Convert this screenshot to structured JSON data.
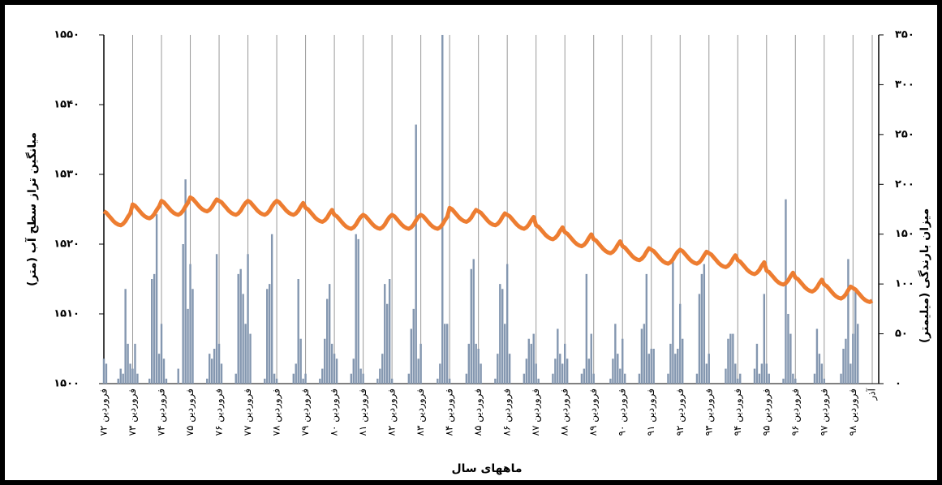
{
  "chart_data": {
    "type": "combo",
    "y_label": "میانگین تراز سطح آب (متر)",
    "y2_label": "میزان بارندگی (میلیمتر)",
    "x_label": "ماههای سال",
    "ylim": [
      1500,
      1550
    ],
    "yticks": [
      {
        "value": 1500,
        "label": "۱۵۰۰"
      },
      {
        "value": 1510,
        "label": "۱۵۱۰"
      },
      {
        "value": 1520,
        "label": "۱۵۲۰"
      },
      {
        "value": 1530,
        "label": "۱۵۳۰"
      },
      {
        "value": 1540,
        "label": "۱۵۴۰"
      },
      {
        "value": 1550,
        "label": "۱۵۵۰"
      }
    ],
    "y2lim": [
      0,
      350
    ],
    "y2ticks": [
      {
        "value": 0,
        "label": "۰"
      },
      {
        "value": 50,
        "label": "۵۰"
      },
      {
        "value": 100,
        "label": "۱۰۰"
      },
      {
        "value": 150,
        "label": "۱۵۰"
      },
      {
        "value": 200,
        "label": "۲۰۰"
      },
      {
        "value": 250,
        "label": "۲۵۰"
      },
      {
        "value": 300,
        "label": "۳۰۰"
      },
      {
        "value": 350,
        "label": "۳۵۰"
      }
    ],
    "categories": [
      "فروردین ۷۲",
      null,
      null,
      null,
      null,
      null,
      null,
      null,
      null,
      null,
      null,
      null,
      "فروردین ۷۳",
      null,
      null,
      null,
      null,
      null,
      null,
      null,
      null,
      null,
      null,
      null,
      "فروردین ۷۴",
      null,
      null,
      null,
      null,
      null,
      null,
      null,
      null,
      null,
      null,
      null,
      "فروردین ۷۵",
      null,
      null,
      null,
      null,
      null,
      null,
      null,
      null,
      null,
      null,
      null,
      "فروردین ۷۶",
      null,
      null,
      null,
      null,
      null,
      null,
      null,
      null,
      null,
      null,
      null,
      "فروردین ۷۷",
      null,
      null,
      null,
      null,
      null,
      null,
      null,
      null,
      null,
      null,
      null,
      "فروردین ۷۸",
      null,
      null,
      null,
      null,
      null,
      null,
      null,
      null,
      null,
      null,
      null,
      "فروردین ۷۹",
      null,
      null,
      null,
      null,
      null,
      null,
      null,
      null,
      null,
      null,
      null,
      "فروردین ۸۰",
      null,
      null,
      null,
      null,
      null,
      null,
      null,
      null,
      null,
      null,
      null,
      "فروردین ۸۱",
      null,
      null,
      null,
      null,
      null,
      null,
      null,
      null,
      null,
      null,
      null,
      "فروردین ۸۲",
      null,
      null,
      null,
      null,
      null,
      null,
      null,
      null,
      null,
      null,
      null,
      "فروردین ۸۳",
      null,
      null,
      null,
      null,
      null,
      null,
      null,
      null,
      null,
      null,
      null,
      "فروردین ۸۴",
      null,
      null,
      null,
      null,
      null,
      null,
      null,
      null,
      null,
      null,
      null,
      "فروردین ۸۵",
      null,
      null,
      null,
      null,
      null,
      null,
      null,
      null,
      null,
      null,
      null,
      "فروردین ۸۶",
      null,
      null,
      null,
      null,
      null,
      null,
      null,
      null,
      null,
      null,
      null,
      "فروردین ۸۷",
      null,
      null,
      null,
      null,
      null,
      null,
      null,
      null,
      null,
      null,
      null,
      "فروردین ۸۸",
      null,
      null,
      null,
      null,
      null,
      null,
      null,
      null,
      null,
      null,
      null,
      "فروردین ۸۹",
      null,
      null,
      null,
      null,
      null,
      null,
      null,
      null,
      null,
      null,
      null,
      "فروردین ۹۰",
      null,
      null,
      null,
      null,
      null,
      null,
      null,
      null,
      null,
      null,
      null,
      "فروردین ۹۱",
      null,
      null,
      null,
      null,
      null,
      null,
      null,
      null,
      null,
      null,
      null,
      "فروردین ۹۲",
      null,
      null,
      null,
      null,
      null,
      null,
      null,
      null,
      null,
      null,
      null,
      "فروردین ۹۳",
      null,
      null,
      null,
      null,
      null,
      null,
      null,
      null,
      null,
      null,
      null,
      "فروردین ۹۴",
      null,
      null,
      null,
      null,
      null,
      null,
      null,
      null,
      null,
      null,
      null,
      "فروردین ۹۵",
      null,
      null,
      null,
      null,
      null,
      null,
      null,
      null,
      null,
      null,
      null,
      "فروردین ۹۶",
      null,
      null,
      null,
      null,
      null,
      null,
      null,
      null,
      null,
      null,
      null,
      "فروردین ۹۷",
      null,
      null,
      null,
      null,
      null,
      null,
      null,
      null,
      null,
      null,
      null,
      "فروردین ۹۸",
      null,
      null,
      null,
      null,
      null,
      null,
      null,
      "آذر"
    ],
    "series": [
      {
        "type": "bar",
        "axis": "y2",
        "color": "#8497b0",
        "values": [
          25,
          20,
          0,
          0,
          0,
          0,
          5,
          15,
          10,
          95,
          40,
          20,
          15,
          40,
          10,
          0,
          0,
          0,
          0,
          5,
          105,
          110,
          170,
          30,
          60,
          25,
          5,
          0,
          0,
          0,
          0,
          15,
          0,
          140,
          205,
          75,
          120,
          95,
          0,
          0,
          0,
          0,
          0,
          5,
          30,
          25,
          35,
          130,
          40,
          20,
          0,
          0,
          0,
          0,
          0,
          10,
          110,
          115,
          90,
          60,
          130,
          50,
          0,
          0,
          0,
          0,
          0,
          5,
          95,
          100,
          150,
          10,
          5,
          0,
          0,
          0,
          0,
          0,
          0,
          10,
          20,
          105,
          45,
          5,
          10,
          0,
          0,
          0,
          0,
          0,
          5,
          15,
          45,
          85,
          100,
          40,
          30,
          25,
          0,
          0,
          0,
          0,
          0,
          10,
          25,
          150,
          145,
          15,
          10,
          0,
          0,
          0,
          0,
          0,
          5,
          15,
          30,
          100,
          80,
          105,
          5,
          0,
          0,
          0,
          0,
          0,
          0,
          10,
          55,
          75,
          260,
          25,
          40,
          0,
          0,
          0,
          0,
          0,
          0,
          5,
          20,
          350,
          60,
          60,
          5,
          0,
          0,
          0,
          0,
          0,
          0,
          10,
          40,
          115,
          125,
          40,
          35,
          20,
          0,
          0,
          0,
          0,
          0,
          5,
          30,
          100,
          95,
          60,
          120,
          30,
          0,
          0,
          0,
          0,
          0,
          10,
          25,
          45,
          40,
          50,
          20,
          5,
          0,
          0,
          0,
          0,
          0,
          10,
          25,
          55,
          30,
          20,
          40,
          25,
          0,
          0,
          0,
          0,
          0,
          10,
          15,
          110,
          25,
          50,
          10,
          0,
          0,
          0,
          0,
          0,
          0,
          5,
          25,
          60,
          30,
          15,
          45,
          10,
          0,
          0,
          0,
          0,
          0,
          10,
          55,
          60,
          110,
          30,
          35,
          35,
          0,
          0,
          0,
          0,
          0,
          10,
          40,
          125,
          30,
          35,
          80,
          45,
          0,
          0,
          0,
          0,
          0,
          10,
          90,
          110,
          120,
          20,
          30,
          0,
          0,
          0,
          0,
          0,
          0,
          15,
          45,
          50,
          50,
          20,
          5,
          10,
          0,
          0,
          0,
          0,
          0,
          15,
          40,
          10,
          20,
          90,
          20,
          10,
          0,
          0,
          0,
          0,
          0,
          5,
          185,
          70,
          50,
          10,
          5,
          0,
          0,
          0,
          0,
          0,
          0,
          0,
          10,
          55,
          30,
          20,
          5,
          0,
          0,
          0,
          0,
          0,
          0,
          10,
          35,
          45,
          125,
          20,
          50,
          95,
          60,
          0,
          0,
          0,
          0,
          0,
          0
        ]
      },
      {
        "type": "line",
        "color": "#ed7d31",
        "values": [
          1524.7,
          1524.5,
          1524.1,
          1523.7,
          1523.3,
          1523.0,
          1522.8,
          1522.7,
          1522.9,
          1523.3,
          1523.9,
          1524.4,
          1525.7,
          1525.5,
          1525.1,
          1524.7,
          1524.3,
          1524.0,
          1523.8,
          1523.7,
          1523.9,
          1524.3,
          1524.9,
          1525.4,
          1526.2,
          1526.0,
          1525.6,
          1525.2,
          1524.8,
          1524.5,
          1524.3,
          1524.2,
          1524.4,
          1524.8,
          1525.4,
          1525.9,
          1526.7,
          1526.5,
          1526.1,
          1525.7,
          1525.3,
          1525.0,
          1524.8,
          1524.7,
          1524.9,
          1525.3,
          1525.9,
          1526.4,
          1526.2,
          1526.0,
          1525.6,
          1525.2,
          1524.8,
          1524.5,
          1524.3,
          1524.2,
          1524.4,
          1524.8,
          1525.4,
          1525.9,
          1526.2,
          1526.0,
          1525.6,
          1525.2,
          1524.8,
          1524.5,
          1524.3,
          1524.2,
          1524.4,
          1524.8,
          1525.4,
          1525.9,
          1526.2,
          1526.0,
          1525.6,
          1525.2,
          1524.8,
          1524.5,
          1524.3,
          1524.2,
          1524.4,
          1524.8,
          1525.4,
          1525.9,
          1525.2,
          1525.0,
          1524.6,
          1524.2,
          1523.8,
          1523.5,
          1523.3,
          1523.2,
          1523.4,
          1523.8,
          1524.4,
          1524.9,
          1524.2,
          1524.0,
          1523.6,
          1523.2,
          1522.8,
          1522.5,
          1522.3,
          1522.2,
          1522.4,
          1522.8,
          1523.4,
          1523.9,
          1524.2,
          1524.0,
          1523.6,
          1523.2,
          1522.8,
          1522.5,
          1522.3,
          1522.2,
          1522.4,
          1522.8,
          1523.4,
          1523.9,
          1524.2,
          1524.0,
          1523.6,
          1523.2,
          1522.8,
          1522.5,
          1522.3,
          1522.2,
          1522.4,
          1522.8,
          1523.4,
          1523.9,
          1524.2,
          1524.0,
          1523.6,
          1523.2,
          1522.8,
          1522.5,
          1522.3,
          1522.2,
          1522.4,
          1522.8,
          1523.4,
          1523.9,
          1525.2,
          1525.0,
          1524.6,
          1524.2,
          1523.8,
          1523.5,
          1523.3,
          1523.2,
          1523.4,
          1523.8,
          1524.4,
          1524.9,
          1524.7,
          1524.5,
          1524.1,
          1523.7,
          1523.3,
          1523.0,
          1522.8,
          1522.7,
          1522.9,
          1523.3,
          1523.9,
          1524.4,
          1524.2,
          1524.0,
          1523.6,
          1523.2,
          1522.8,
          1522.5,
          1522.3,
          1522.2,
          1522.4,
          1522.8,
          1523.4,
          1523.9,
          1522.7,
          1522.5,
          1522.1,
          1521.7,
          1521.3,
          1521.0,
          1520.8,
          1520.7,
          1520.9,
          1521.3,
          1521.9,
          1522.4,
          1521.7,
          1521.5,
          1521.1,
          1520.7,
          1520.3,
          1520.0,
          1519.8,
          1519.7,
          1519.9,
          1520.3,
          1520.9,
          1521.4,
          1520.7,
          1520.5,
          1520.1,
          1519.7,
          1519.3,
          1519.0,
          1518.8,
          1518.7,
          1518.9,
          1519.3,
          1519.9,
          1520.4,
          1519.7,
          1519.5,
          1519.1,
          1518.7,
          1518.3,
          1518.0,
          1517.8,
          1517.7,
          1517.9,
          1518.3,
          1518.9,
          1519.4,
          1519.2,
          1519.0,
          1518.6,
          1518.2,
          1517.8,
          1517.5,
          1517.3,
          1517.2,
          1517.4,
          1517.8,
          1518.4,
          1518.9,
          1519.2,
          1519.0,
          1518.6,
          1518.2,
          1517.8,
          1517.5,
          1517.3,
          1517.2,
          1517.4,
          1517.8,
          1518.4,
          1518.9,
          1518.7,
          1518.5,
          1518.1,
          1517.7,
          1517.3,
          1517.0,
          1516.8,
          1516.7,
          1516.9,
          1517.3,
          1517.9,
          1518.4,
          1517.7,
          1517.5,
          1517.1,
          1516.7,
          1516.3,
          1516.0,
          1515.8,
          1515.7,
          1515.9,
          1516.3,
          1516.9,
          1517.4,
          1516.2,
          1516.0,
          1515.6,
          1515.2,
          1514.8,
          1514.5,
          1514.3,
          1514.2,
          1514.4,
          1514.8,
          1515.4,
          1515.9,
          1515.2,
          1515.0,
          1514.6,
          1514.2,
          1513.8,
          1513.5,
          1513.3,
          1513.2,
          1513.4,
          1513.8,
          1514.4,
          1514.9,
          1514.2,
          1514.0,
          1513.6,
          1513.2,
          1512.8,
          1512.5,
          1512.3,
          1512.2,
          1512.4,
          1512.8,
          1513.4,
          1513.9,
          1513.7,
          1513.5,
          1513.1,
          1512.7,
          1512.3,
          1512.0,
          1511.8,
          1511.7,
          1511.9
        ]
      }
    ]
  }
}
